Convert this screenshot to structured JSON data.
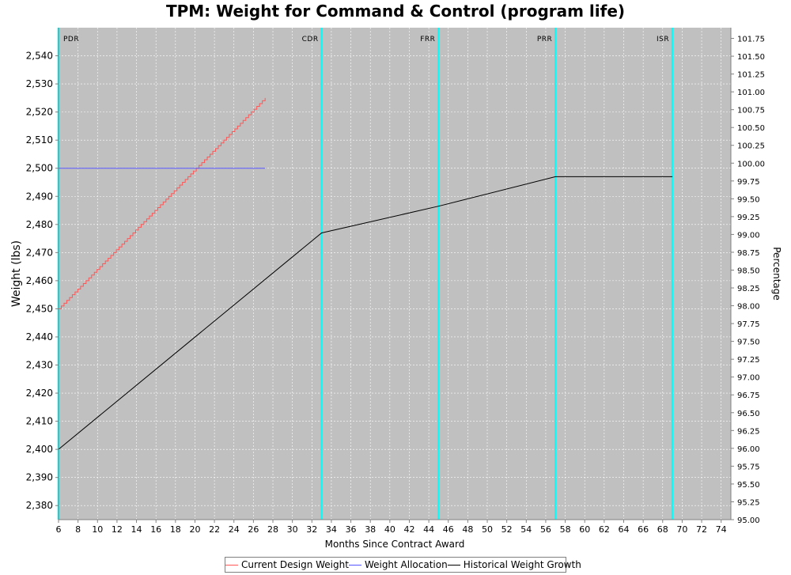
{
  "chart_data": {
    "type": "line",
    "title": "TPM: Weight for Command & Control (program life)",
    "xlabel": "Months Since Contract Award",
    "ylabel": "Weight (lbs)",
    "y2label": "Percentage",
    "xlim": [
      6,
      75
    ],
    "ylim": [
      2375,
      2550
    ],
    "y2lim": [
      95,
      101.9
    ],
    "x_ticks": [
      6,
      8,
      10,
      12,
      14,
      16,
      18,
      20,
      22,
      24,
      26,
      28,
      30,
      32,
      34,
      36,
      38,
      40,
      42,
      44,
      46,
      48,
      50,
      52,
      54,
      56,
      58,
      60,
      62,
      64,
      66,
      68,
      70,
      72,
      74
    ],
    "y_ticks": [
      2380,
      2390,
      2400,
      2410,
      2420,
      2430,
      2440,
      2450,
      2460,
      2470,
      2480,
      2490,
      2500,
      2510,
      2520,
      2530,
      2540
    ],
    "y_tick_labels": [
      "2,380",
      "2,390",
      "2,400",
      "2,410",
      "2,420",
      "2,430",
      "2,440",
      "2,450",
      "2,460",
      "2,470",
      "2,480",
      "2,490",
      "2,500",
      "2,510",
      "2,520",
      "2,530",
      "2,540"
    ],
    "y2_ticks": [
      95.0,
      95.25,
      95.5,
      95.75,
      96.0,
      96.25,
      96.5,
      96.75,
      97.0,
      97.25,
      97.5,
      97.75,
      98.0,
      98.25,
      98.5,
      98.75,
      99.0,
      99.25,
      99.5,
      99.75,
      100.0,
      100.25,
      100.5,
      100.75,
      101.0,
      101.25,
      101.5,
      101.75
    ],
    "y2_tick_labels": [
      "95.00",
      "95.25",
      "95.50",
      "95.75",
      "96.00",
      "96.25",
      "96.50",
      "96.75",
      "97.00",
      "97.25",
      "97.50",
      "97.75",
      "98.00",
      "98.25",
      "98.50",
      "98.75",
      "99.00",
      "99.25",
      "99.50",
      "99.75",
      "100.00",
      "100.25",
      "100.50",
      "100.75",
      "101.00",
      "101.25",
      "101.50",
      "101.75"
    ],
    "grid": true,
    "legend_position": "bottom",
    "milestones": [
      {
        "label": "PDR",
        "x": 6
      },
      {
        "label": "CDR",
        "x": 33
      },
      {
        "label": "FRR",
        "x": 45
      },
      {
        "label": "PRR",
        "x": 57
      },
      {
        "label": "ISR",
        "x": 69
      }
    ],
    "series": [
      {
        "name": "Current Design Weight",
        "color": "#ff5555",
        "style": "step",
        "x": [
          6,
          27.2
        ],
        "y": [
          2450,
          2525
        ]
      },
      {
        "name": "Weight Allocation",
        "color": "#5555ff",
        "style": "line",
        "x": [
          6,
          27.2
        ],
        "y": [
          2500,
          2500
        ]
      },
      {
        "name": "Historical Weight Growth",
        "color": "#000000",
        "style": "line",
        "x": [
          6,
          33,
          45,
          57,
          69
        ],
        "y": [
          2400,
          2477,
          2486.5,
          2497,
          2497
        ]
      }
    ],
    "colors": {
      "plot_background": "#c0c0c0",
      "milestone": "#00ffff",
      "grid": "#ffffff"
    }
  }
}
